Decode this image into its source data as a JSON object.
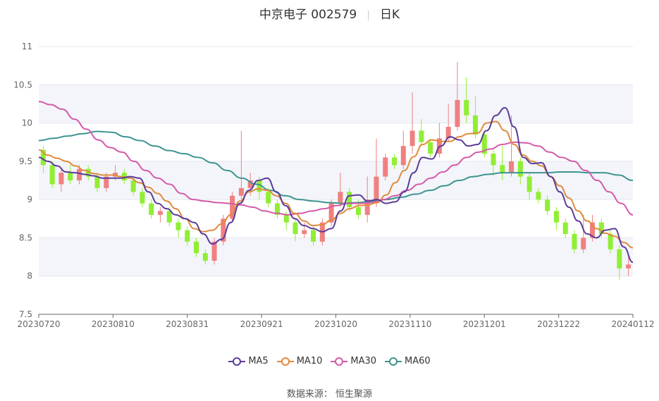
{
  "title": {
    "name": "中京电子 002579",
    "period": "日K"
  },
  "source": "数据来源： 恒生聚源",
  "chart_data": {
    "type": "candlestick",
    "y_ticks": [
      "11",
      "10.5",
      "10",
      "9.5",
      "9",
      "8.5",
      "8",
      "7.5"
    ],
    "ylim": [
      7.5,
      11
    ],
    "x_ticks": [
      "20230720",
      "20230810",
      "20230831",
      "20230921",
      "20231020",
      "20231110",
      "20231201",
      "20231222",
      "20240112"
    ],
    "colors": {
      "up": "#f08080",
      "down": "#90ee33",
      "MA5": "#5b3b9a",
      "MA10": "#e08a3c",
      "MA30": "#d45aa8",
      "MA60": "#3d9490"
    },
    "series": [
      {
        "name": "MA5",
        "values": [
          9.55,
          9.5,
          9.44,
          9.36,
          9.35,
          9.33,
          9.31,
          9.28,
          9.28,
          9.28,
          9.3,
          9.28,
          9.1,
          8.95,
          8.88,
          8.8,
          8.75,
          8.7,
          8.55,
          8.42,
          8.48,
          8.7,
          8.95,
          9.12,
          9.25,
          9.28,
          9.1,
          8.92,
          8.75,
          8.66,
          8.62,
          8.58,
          8.62,
          8.85,
          9.05,
          9.06,
          8.98,
          9.0,
          8.95,
          8.97,
          9.1,
          9.35,
          9.55,
          9.53,
          9.7,
          9.82,
          9.78,
          9.7,
          9.72,
          9.9,
          10.1,
          10.2,
          9.95,
          9.55,
          9.47,
          9.48,
          9.3,
          9.1,
          8.9,
          8.72,
          8.55,
          8.5,
          8.6,
          8.62,
          8.38,
          8.18
        ]
      },
      {
        "name": "MA10",
        "values": [
          9.65,
          9.58,
          9.54,
          9.5,
          9.44,
          9.38,
          9.34,
          9.32,
          9.32,
          9.3,
          9.28,
          9.22,
          9.16,
          9.08,
          8.98,
          8.88,
          8.75,
          8.62,
          8.58,
          8.6,
          8.68,
          8.8,
          8.98,
          9.1,
          9.14,
          9.12,
          9.05,
          8.95,
          8.82,
          8.72,
          8.66,
          8.67,
          8.73,
          8.82,
          8.88,
          8.92,
          8.93,
          8.96,
          9.06,
          9.22,
          9.38,
          9.56,
          9.72,
          9.78,
          9.76,
          9.76,
          9.82,
          9.86,
          9.87,
          10.0,
          10.02,
          9.9,
          9.72,
          9.58,
          9.5,
          9.44,
          9.3,
          9.18,
          9.02,
          8.85,
          8.72,
          8.62,
          8.56,
          8.52,
          8.44,
          8.37
        ]
      },
      {
        "name": "MA30",
        "values": [
          10.28,
          10.24,
          10.18,
          10.05,
          9.92,
          9.78,
          9.68,
          9.62,
          9.5,
          9.38,
          9.28,
          9.2,
          9.08,
          9.0,
          8.98,
          8.96,
          8.95,
          8.93,
          8.9,
          8.85,
          8.82,
          8.8,
          8.82,
          8.85,
          8.88,
          8.92,
          8.95,
          8.95,
          8.96,
          9.0,
          9.05,
          9.12,
          9.2,
          9.28,
          9.36,
          9.45,
          9.55,
          9.62,
          9.66,
          9.72,
          9.75,
          9.74,
          9.7,
          9.62,
          9.55,
          9.5,
          9.38,
          9.25,
          9.1,
          8.95,
          8.8
        ]
      },
      {
        "name": "MA60",
        "values": [
          9.77,
          9.8,
          9.83,
          9.86,
          9.89,
          9.88,
          9.82,
          9.77,
          9.7,
          9.64,
          9.6,
          9.55,
          9.48,
          9.38,
          9.28,
          9.2,
          9.12,
          9.05,
          9.0,
          8.98,
          8.96,
          8.95,
          8.96,
          8.98,
          9.0,
          9.03,
          9.07,
          9.12,
          9.18,
          9.25,
          9.3,
          9.33,
          9.35,
          9.35,
          9.35,
          9.35,
          9.36,
          9.36,
          9.35,
          9.35,
          9.32,
          9.25
        ]
      },
      {
        "name": "candles",
        "values": [
          [
            9.65,
            9.45,
            9.7,
            9.35
          ],
          [
            9.45,
            9.2,
            9.5,
            9.15
          ],
          [
            9.2,
            9.35,
            9.4,
            9.1
          ],
          [
            9.35,
            9.25,
            9.45,
            9.2
          ],
          [
            9.25,
            9.4,
            9.45,
            9.2
          ],
          [
            9.4,
            9.3,
            9.45,
            9.25
          ],
          [
            9.3,
            9.15,
            9.35,
            9.1
          ],
          [
            9.15,
            9.3,
            9.35,
            9.1
          ],
          [
            9.3,
            9.35,
            9.45,
            9.25
          ],
          [
            9.35,
            9.25,
            9.4,
            9.2
          ],
          [
            9.25,
            9.1,
            9.3,
            9.05
          ],
          [
            9.1,
            8.95,
            9.15,
            8.9
          ],
          [
            8.95,
            8.8,
            9.0,
            8.75
          ],
          [
            8.8,
            8.85,
            8.9,
            8.7
          ],
          [
            8.85,
            8.7,
            8.9,
            8.65
          ],
          [
            8.7,
            8.6,
            8.75,
            8.5
          ],
          [
            8.6,
            8.45,
            8.65,
            8.4
          ],
          [
            8.45,
            8.3,
            8.5,
            8.25
          ],
          [
            8.3,
            8.2,
            8.35,
            8.15
          ],
          [
            8.2,
            8.45,
            8.5,
            8.15
          ],
          [
            8.45,
            8.75,
            8.8,
            8.4
          ],
          [
            8.75,
            9.05,
            9.1,
            8.7
          ],
          [
            9.05,
            9.15,
            9.9,
            9.0
          ],
          [
            9.15,
            9.25,
            9.35,
            9.05
          ],
          [
            9.25,
            9.1,
            9.3,
            9.0
          ],
          [
            9.1,
            8.95,
            9.15,
            8.9
          ],
          [
            8.95,
            8.8,
            9.0,
            8.75
          ],
          [
            8.8,
            8.7,
            8.85,
            8.6
          ],
          [
            8.7,
            8.55,
            8.75,
            8.45
          ],
          [
            8.55,
            8.6,
            8.7,
            8.5
          ],
          [
            8.6,
            8.45,
            8.65,
            8.4
          ],
          [
            8.45,
            8.7,
            8.75,
            8.4
          ],
          [
            8.7,
            8.95,
            9.0,
            8.65
          ],
          [
            8.95,
            9.1,
            9.35,
            8.9
          ],
          [
            9.1,
            8.9,
            9.15,
            8.85
          ],
          [
            8.9,
            8.8,
            9.0,
            8.75
          ],
          [
            8.8,
            9.0,
            9.3,
            8.7
          ],
          [
            9.0,
            9.3,
            9.8,
            8.9
          ],
          [
            9.3,
            9.55,
            9.6,
            9.25
          ],
          [
            9.55,
            9.45,
            9.6,
            9.4
          ],
          [
            9.45,
            9.7,
            9.9,
            9.4
          ],
          [
            9.7,
            9.9,
            10.4,
            9.6
          ],
          [
            9.9,
            9.75,
            10.05,
            9.7
          ],
          [
            9.75,
            9.6,
            9.8,
            9.55
          ],
          [
            9.6,
            9.8,
            10.0,
            9.55
          ],
          [
            9.8,
            9.95,
            10.25,
            9.75
          ],
          [
            9.95,
            10.3,
            10.8,
            9.9
          ],
          [
            10.3,
            10.1,
            10.6,
            10.0
          ],
          [
            10.1,
            9.85,
            10.35,
            9.8
          ],
          [
            9.85,
            9.6,
            9.9,
            9.55
          ],
          [
            9.6,
            9.45,
            9.65,
            9.3
          ],
          [
            9.45,
            9.35,
            9.7,
            9.25
          ],
          [
            9.35,
            9.5,
            10.1,
            9.3
          ],
          [
            9.5,
            9.3,
            9.55,
            9.2
          ],
          [
            9.3,
            9.1,
            9.35,
            9.0
          ],
          [
            9.1,
            9.0,
            9.15,
            8.95
          ],
          [
            9.0,
            8.85,
            9.05,
            8.8
          ],
          [
            8.85,
            8.7,
            8.9,
            8.6
          ],
          [
            8.7,
            8.55,
            8.75,
            8.5
          ],
          [
            8.55,
            8.35,
            8.6,
            8.3
          ],
          [
            8.35,
            8.5,
            8.8,
            8.3
          ],
          [
            8.5,
            8.7,
            8.8,
            8.45
          ],
          [
            8.7,
            8.55,
            8.75,
            8.5
          ],
          [
            8.55,
            8.35,
            8.6,
            8.3
          ],
          [
            8.35,
            8.1,
            8.4,
            7.95
          ],
          [
            8.1,
            8.15,
            8.25,
            8.0
          ]
        ]
      }
    ]
  }
}
